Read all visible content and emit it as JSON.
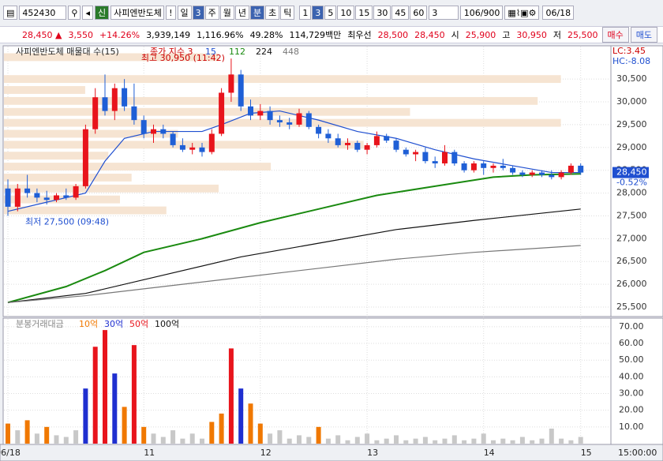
{
  "toolbar": {
    "code": "452430",
    "market": "신",
    "name": "사피엔반도체",
    "warning": "!",
    "periods": [
      "일",
      "3",
      "주",
      "월",
      "년",
      "분",
      "초",
      "틱"
    ],
    "intervals": [
      "1",
      "3",
      "5",
      "10",
      "15",
      "30",
      "45",
      "60"
    ],
    "count": "3",
    "range": "106/900",
    "date": "06/18"
  },
  "quote": {
    "price": "28,450",
    "arrow": "▲",
    "change": "3,550",
    "rate": "+14.26%",
    "volume": "3,939,149",
    "volume_ratio": "1,116.96%",
    "turnover": "49.28%",
    "amount": "114,729백만",
    "best_label": "최우선",
    "ask": "28,500",
    "bid": "28,450",
    "open_label": "시",
    "open": "25,900",
    "high_label": "고",
    "high": "30,950",
    "low_label": "저",
    "low": "25,500",
    "buy": "매수",
    "sell": "매도"
  },
  "chart_data": {
    "type": "candlestick",
    "title": "사피엔반도체 매물대 수(15)",
    "index_label": "종가 지수 3",
    "lc": "LC:3.45",
    "hc": "HC:-8.08",
    "ylim": [
      25310,
      31160
    ],
    "yticks": [
      {
        "value": 25500,
        "label": "25,500"
      },
      {
        "value": 26000,
        "label": "26,000"
      },
      {
        "value": 26500,
        "label": "26,500"
      },
      {
        "value": 27000,
        "label": "27,000"
      },
      {
        "value": 27500,
        "label": "27,500"
      },
      {
        "value": 28000,
        "label": "28,000"
      },
      {
        "value": 28500,
        "label": "28,500"
      },
      {
        "value": 29000,
        "label": "29,000"
      },
      {
        "value": 29500,
        "label": "29,500"
      },
      {
        "value": 30000,
        "label": "30,000"
      },
      {
        "value": 30500,
        "label": "30,500"
      }
    ],
    "last_label": "28,450",
    "last_rate": "-0.52%",
    "high_note": "최고 30,950 (11:42)",
    "low_note": "최저 27,500 (09:48)",
    "categories": [
      "06/18",
      null,
      null,
      null,
      null,
      null,
      null,
      null,
      null,
      null,
      null,
      null,
      null,
      null,
      "11",
      null,
      null,
      null,
      null,
      null,
      null,
      null,
      null,
      null,
      null,
      null,
      "12",
      null,
      null,
      null,
      null,
      null,
      null,
      null,
      null,
      null,
      null,
      "13",
      null,
      null,
      null,
      null,
      null,
      null,
      null,
      null,
      null,
      null,
      null,
      "14",
      null,
      null,
      null,
      null,
      null,
      null,
      null,
      null,
      null,
      "15"
    ],
    "time_label": "15:00:00",
    "candles": [
      [
        28100,
        28300,
        27500,
        27700
      ],
      [
        27700,
        28200,
        27600,
        28100
      ],
      [
        28100,
        28400,
        27900,
        28000
      ],
      [
        28000,
        28100,
        27800,
        27900
      ],
      [
        27900,
        28050,
        27750,
        27850
      ],
      [
        27850,
        28000,
        27800,
        27950
      ],
      [
        27950,
        28100,
        27850,
        27900
      ],
      [
        27900,
        28200,
        27850,
        28150
      ],
      [
        28150,
        29500,
        28100,
        29400
      ],
      [
        29400,
        30300,
        29300,
        30100
      ],
      [
        30100,
        30600,
        29700,
        29800
      ],
      [
        29800,
        30400,
        29600,
        30300
      ],
      [
        30300,
        30500,
        29800,
        29900
      ],
      [
        29900,
        30400,
        29500,
        29600
      ],
      [
        29600,
        29700,
        29200,
        29300
      ],
      [
        29300,
        29500,
        29100,
        29400
      ],
      [
        29400,
        29500,
        29200,
        29300
      ],
      [
        29300,
        29350,
        29000,
        29050
      ],
      [
        29050,
        29200,
        28900,
        28950
      ],
      [
        28950,
        29100,
        28850,
        29000
      ],
      [
        29000,
        29100,
        28800,
        28900
      ],
      [
        28900,
        29400,
        28850,
        29300
      ],
      [
        29300,
        30300,
        29250,
        30200
      ],
      [
        30200,
        30950,
        30000,
        30600
      ],
      [
        30600,
        30700,
        29800,
        29900
      ],
      [
        29900,
        30050,
        29600,
        29700
      ],
      [
        29700,
        29950,
        29600,
        29800
      ],
      [
        29800,
        29900,
        29500,
        29600
      ],
      [
        29600,
        29700,
        29450,
        29550
      ],
      [
        29550,
        29650,
        29400,
        29500
      ],
      [
        29500,
        29850,
        29450,
        29750
      ],
      [
        29750,
        29800,
        29400,
        29450
      ],
      [
        29450,
        29500,
        29200,
        29300
      ],
      [
        29300,
        29400,
        29100,
        29200
      ],
      [
        29200,
        29300,
        29000,
        29050
      ],
      [
        29050,
        29200,
        28950,
        29100
      ],
      [
        29100,
        29150,
        28900,
        28950
      ],
      [
        28950,
        29100,
        28850,
        29050
      ],
      [
        29050,
        29350,
        29000,
        29250
      ],
      [
        29250,
        29300,
        29100,
        29150
      ],
      [
        29150,
        29200,
        28900,
        28950
      ],
      [
        28950,
        29000,
        28800,
        28850
      ],
      [
        28850,
        28950,
        28700,
        28900
      ],
      [
        28900,
        29000,
        28650,
        28700
      ],
      [
        28700,
        28800,
        28550,
        28650
      ],
      [
        28650,
        29050,
        28600,
        28900
      ],
      [
        28900,
        28950,
        28600,
        28650
      ],
      [
        28650,
        28700,
        28450,
        28500
      ],
      [
        28500,
        28700,
        28450,
        28650
      ],
      [
        28650,
        28700,
        28400,
        28550
      ],
      [
        28550,
        28650,
        28450,
        28600
      ],
      [
        28600,
        28750,
        28500,
        28550
      ],
      [
        28550,
        28600,
        28400,
        28450
      ],
      [
        28450,
        28500,
        28350,
        28400
      ],
      [
        28400,
        28500,
        28350,
        28450
      ],
      [
        28450,
        28500,
        28350,
        28400
      ],
      [
        28400,
        28500,
        28300,
        28350
      ],
      [
        28350,
        28500,
        28300,
        28450
      ],
      [
        28450,
        28650,
        28400,
        28600
      ],
      [
        28600,
        28650,
        28400,
        28450
      ]
    ],
    "up_color": "#e8141c",
    "down_color": "#1f5fd6",
    "lines": [
      {
        "name": "15",
        "color": "#1f4fd0",
        "x": [
          0,
          4,
          8,
          10,
          12,
          15,
          20,
          22,
          25,
          28,
          32,
          36,
          40,
          44,
          48,
          52,
          56,
          59
        ],
        "values": [
          27600,
          27800,
          28000,
          28700,
          29200,
          29350,
          29350,
          29500,
          29750,
          29800,
          29600,
          29350,
          29200,
          28950,
          28750,
          28600,
          28450,
          28450
        ]
      },
      {
        "name": "112",
        "color": "#1a8a10",
        "x": [
          0,
          6,
          10,
          14,
          20,
          26,
          32,
          38,
          44,
          50,
          54,
          59
        ],
        "values": [
          25600,
          25950,
          26300,
          26700,
          27000,
          27350,
          27650,
          27950,
          28150,
          28350,
          28400,
          28420
        ]
      },
      {
        "name": "224",
        "color": "#111111",
        "x": [
          0,
          8,
          16,
          24,
          32,
          40,
          48,
          59
        ],
        "values": [
          25600,
          25800,
          26200,
          26600,
          26900,
          27200,
          27400,
          27650
        ]
      },
      {
        "name": "448",
        "color": "#777777",
        "x": [
          0,
          8,
          16,
          24,
          32,
          40,
          48,
          59
        ],
        "values": [
          25600,
          25750,
          25950,
          26150,
          26350,
          26550,
          26700,
          26850
        ]
      }
    ],
    "profile": {
      "color": "#f6e4d2",
      "bins": [
        27500,
        27740,
        27980,
        28220,
        28460,
        28700,
        28940,
        29180,
        29420,
        29660,
        29900,
        30140,
        30380,
        30620,
        30860,
        31100
      ],
      "values": [
        28,
        20,
        37,
        22,
        46,
        18,
        62,
        30,
        96,
        70,
        92,
        14,
        96,
        0,
        37
      ]
    },
    "volume": {
      "title": "분봉거래대금",
      "ylim": [
        0,
        74.2
      ],
      "yticks": [
        {
          "value": 10,
          "label": "10.00"
        },
        {
          "value": 20,
          "label": "20.00"
        },
        {
          "value": 30,
          "label": "30.00"
        },
        {
          "value": 40,
          "label": "40.00"
        },
        {
          "value": 50,
          "label": "50.00"
        },
        {
          "value": 60,
          "label": "60.00"
        },
        {
          "value": 70,
          "label": "70.00"
        }
      ],
      "levels": [
        {
          "label": "10억",
          "value": 10,
          "color": "#f07800"
        },
        {
          "label": "30억",
          "value": 30,
          "color": "#1f2fd0"
        },
        {
          "label": "50억",
          "value": 50,
          "color": "#e8141c"
        },
        {
          "label": "100억",
          "value": 100,
          "color": "#111111"
        }
      ],
      "base_color": "#c8c8c8",
      "values": [
        12,
        8,
        14,
        6,
        10,
        5,
        4,
        8,
        33,
        58,
        68,
        42,
        22,
        59,
        10,
        6,
        4,
        8,
        3,
        6,
        3,
        13,
        18,
        57,
        33,
        24,
        12,
        6,
        8,
        3,
        5,
        4,
        10,
        3,
        5,
        2,
        4,
        6,
        2,
        3,
        5,
        2,
        3,
        4,
        2,
        3,
        5,
        2,
        3,
        6,
        2,
        3,
        2,
        4,
        2,
        3,
        9,
        3,
        2,
        4
      ]
    }
  }
}
